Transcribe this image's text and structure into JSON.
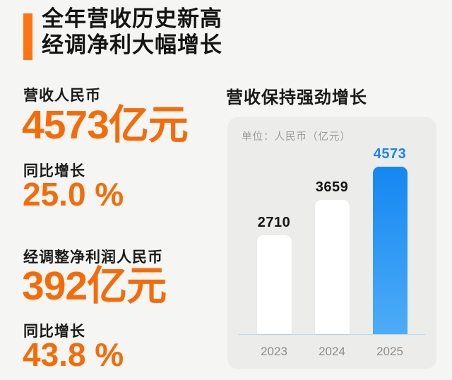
{
  "header": {
    "title_line1": "全年营收历史新高",
    "title_line2": "经调净利大幅增长"
  },
  "stats": [
    {
      "label": "营收人民币",
      "value": "4573亿元",
      "growth_label": "同比增长",
      "growth_value": "25.0 %"
    },
    {
      "label": "经调整净利润人民币",
      "value": "392亿元",
      "growth_label": "同比增长",
      "growth_value": "43.8 %"
    }
  ],
  "chart": {
    "section_title": "营收保持强劲增长",
    "unit_note": "单位：人民币（亿元）"
  },
  "chart_data": {
    "type": "bar",
    "categories": [
      "2023",
      "2024",
      "2025"
    ],
    "values": [
      2710,
      3659,
      4573
    ],
    "title": "营收保持强劲增长",
    "xlabel": "",
    "ylabel": "人民币（亿元）",
    "ylim": [
      0,
      4800
    ],
    "grid": false,
    "legend": false,
    "highlight_index": 2,
    "value_label_colors": [
      "#141414",
      "#141414",
      "#1787f0"
    ],
    "bar_colors": [
      "#ffffff",
      "#ffffff",
      "linear-gradient(#1487f2,#4dacf7)"
    ]
  },
  "colors": {
    "background": "#f5f5f3",
    "card_background": "#ececea",
    "accent_orange": "#f46c09",
    "accent_bar_orange": "#ff7412",
    "highlight_blue": "#1b8df3",
    "baseline_blue": "#bdd7ea",
    "text_black": "#141414",
    "text_gray": "#9b9b9b"
  }
}
